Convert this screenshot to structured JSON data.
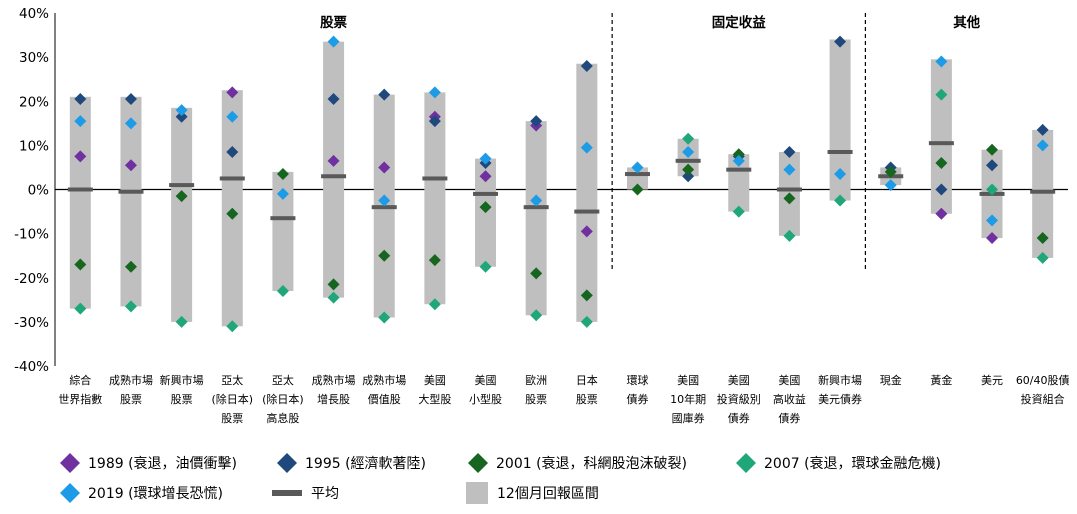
{
  "chart_data": {
    "type": "range",
    "y_unit": "%",
    "ylim": [
      -40,
      40
    ],
    "yticks": [
      "-40%",
      "-30%",
      "-20%",
      "-10%",
      "0%",
      "10%",
      "20%",
      "30%",
      "40%"
    ],
    "groups": [
      {
        "label": "股票",
        "start": 0,
        "end": 10
      },
      {
        "label": "固定收益",
        "start": 11,
        "end": 15
      },
      {
        "label": "其他",
        "start": 16,
        "end": 19
      }
    ],
    "categories": [
      [
        "綜合",
        "世界指數"
      ],
      [
        "成熟市場",
        "股票"
      ],
      [
        "新興市場",
        "股票"
      ],
      [
        "亞太",
        "(除日本)",
        "股票"
      ],
      [
        "亞太",
        "(除日本)",
        "高息股"
      ],
      [
        "成熟市場",
        "增長股"
      ],
      [
        "成熟市場",
        "價值股"
      ],
      [
        "美國",
        "大型股"
      ],
      [
        "美國",
        "小型股"
      ],
      [
        "歐洲",
        "股票"
      ],
      [
        "日本",
        "股票"
      ],
      [
        "環球",
        "債券"
      ],
      [
        "美國",
        "10年期",
        "國庫券"
      ],
      [
        "美國",
        "投資級別",
        "債券"
      ],
      [
        "美國",
        "高收益",
        "債券"
      ],
      [
        "新興市場",
        "美元債券"
      ],
      [
        "現金"
      ],
      [
        "黃金"
      ],
      [
        "美元"
      ],
      [
        "60/40股債",
        "投資組合"
      ]
    ],
    "range": {
      "name": "12個月回報區間",
      "color": "#bfbfbf",
      "low": [
        -27,
        -26.5,
        -30,
        -31,
        -23,
        -24.5,
        -29,
        -26,
        -17.5,
        -28.5,
        -30,
        0,
        3,
        -5,
        -10.5,
        -2.5,
        1,
        -5.5,
        -11,
        -15.5
      ],
      "high": [
        21,
        21,
        18.5,
        22.5,
        4,
        33.5,
        21.5,
        22,
        7,
        15.5,
        28.5,
        5,
        11.5,
        8,
        8.5,
        34,
        5,
        29.5,
        9,
        13.5
      ]
    },
    "average": {
      "name": "平均",
      "color": "#595959",
      "values": [
        0,
        -0.5,
        1,
        2.5,
        -6.5,
        3,
        -4,
        2.5,
        -1,
        -4,
        -5,
        3.5,
        6.5,
        4.5,
        0,
        8.5,
        3,
        10.5,
        -1,
        -0.5
      ]
    },
    "series": [
      {
        "name": "1989 (衰退，油價衝擊)",
        "color": "#7030a0",
        "values": [
          7.5,
          5.5,
          null,
          22,
          null,
          6.5,
          5,
          16.5,
          3,
          14.5,
          -9.5,
          null,
          null,
          null,
          null,
          null,
          null,
          -5.5,
          -11,
          null
        ]
      },
      {
        "name": "1995 (經濟軟著陸)",
        "color": "#1f497d",
        "values": [
          20.5,
          20.5,
          16.5,
          8.5,
          null,
          20.5,
          21.5,
          15.5,
          6,
          15.5,
          28,
          null,
          3,
          7.5,
          8.5,
          33.5,
          5,
          0,
          5.5,
          13.5
        ]
      },
      {
        "name": "2001 (衰退，科網股泡沫破裂)",
        "color": "#17661f",
        "values": [
          -17,
          -17.5,
          -1.5,
          -5.5,
          3.5,
          -21.5,
          -15,
          -16,
          -4,
          -19,
          -24,
          0,
          4.5,
          8,
          -2,
          null,
          4,
          6,
          9,
          -11
        ]
      },
      {
        "name": "2007 (衰退，環球金融危機)",
        "color": "#1fa77a",
        "values": [
          -27,
          -26.5,
          -30,
          -31,
          -23,
          -24.5,
          -29,
          -26,
          -17.5,
          -28.5,
          -30,
          null,
          11.5,
          -5,
          -10.5,
          -2.5,
          null,
          21.5,
          0,
          -15.5
        ]
      },
      {
        "name": "2019 (環球增長恐慌)",
        "color": "#1c9be6",
        "values": [
          15.5,
          15,
          18,
          16.5,
          -1,
          33.5,
          -2.5,
          22,
          7,
          -2.5,
          9.5,
          5,
          8.5,
          6.5,
          4.5,
          3.5,
          1,
          29,
          -7,
          10
        ]
      }
    ],
    "legend_position": "bottom",
    "grid": false
  }
}
